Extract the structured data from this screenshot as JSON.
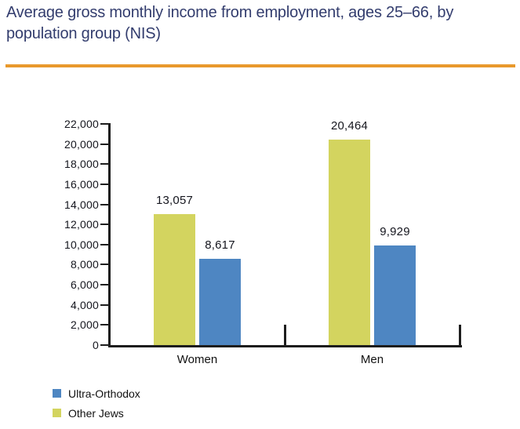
{
  "header": {
    "title_line1": "Average gross monthly income from employment, ages 25–66, by",
    "title_line2": "population group (NIS)",
    "title_color": "#333d6e",
    "rule_color": "#e9992c"
  },
  "chart_data": {
    "type": "bar",
    "title": "Average gross monthly income from employment, ages 25–66, by population group (NIS)",
    "categories": [
      "Women",
      "Men"
    ],
    "series": [
      {
        "name": "Ultra-Orthodox",
        "color": "#4e86c2",
        "values": [
          8617,
          9929
        ]
      },
      {
        "name": "Other Jews",
        "color": "#d3d45f",
        "values": [
          13057,
          20464
        ]
      }
    ],
    "group_bar_order": [
      "Other Jews",
      "Ultra-Orthodox"
    ],
    "value_labels": {
      "Women": {
        "Other Jews": "13,057",
        "Ultra-Orthodox": "8,617"
      },
      "Men": {
        "Other Jews": "20,464",
        "Ultra-Orthodox": "9,929"
      }
    },
    "ylim": [
      0,
      22000
    ],
    "ytick_interval": 2000,
    "ytick_labels": [
      "0",
      "2,000",
      "4,000",
      "6,000",
      "8,000",
      "10,000",
      "12,000",
      "14,000",
      "16,000",
      "18,000",
      "20,000",
      "22,000"
    ],
    "grid": false,
    "legend_position": "bottom-left",
    "axis_color": "#1d1d1d",
    "text_color": "#15161e"
  }
}
